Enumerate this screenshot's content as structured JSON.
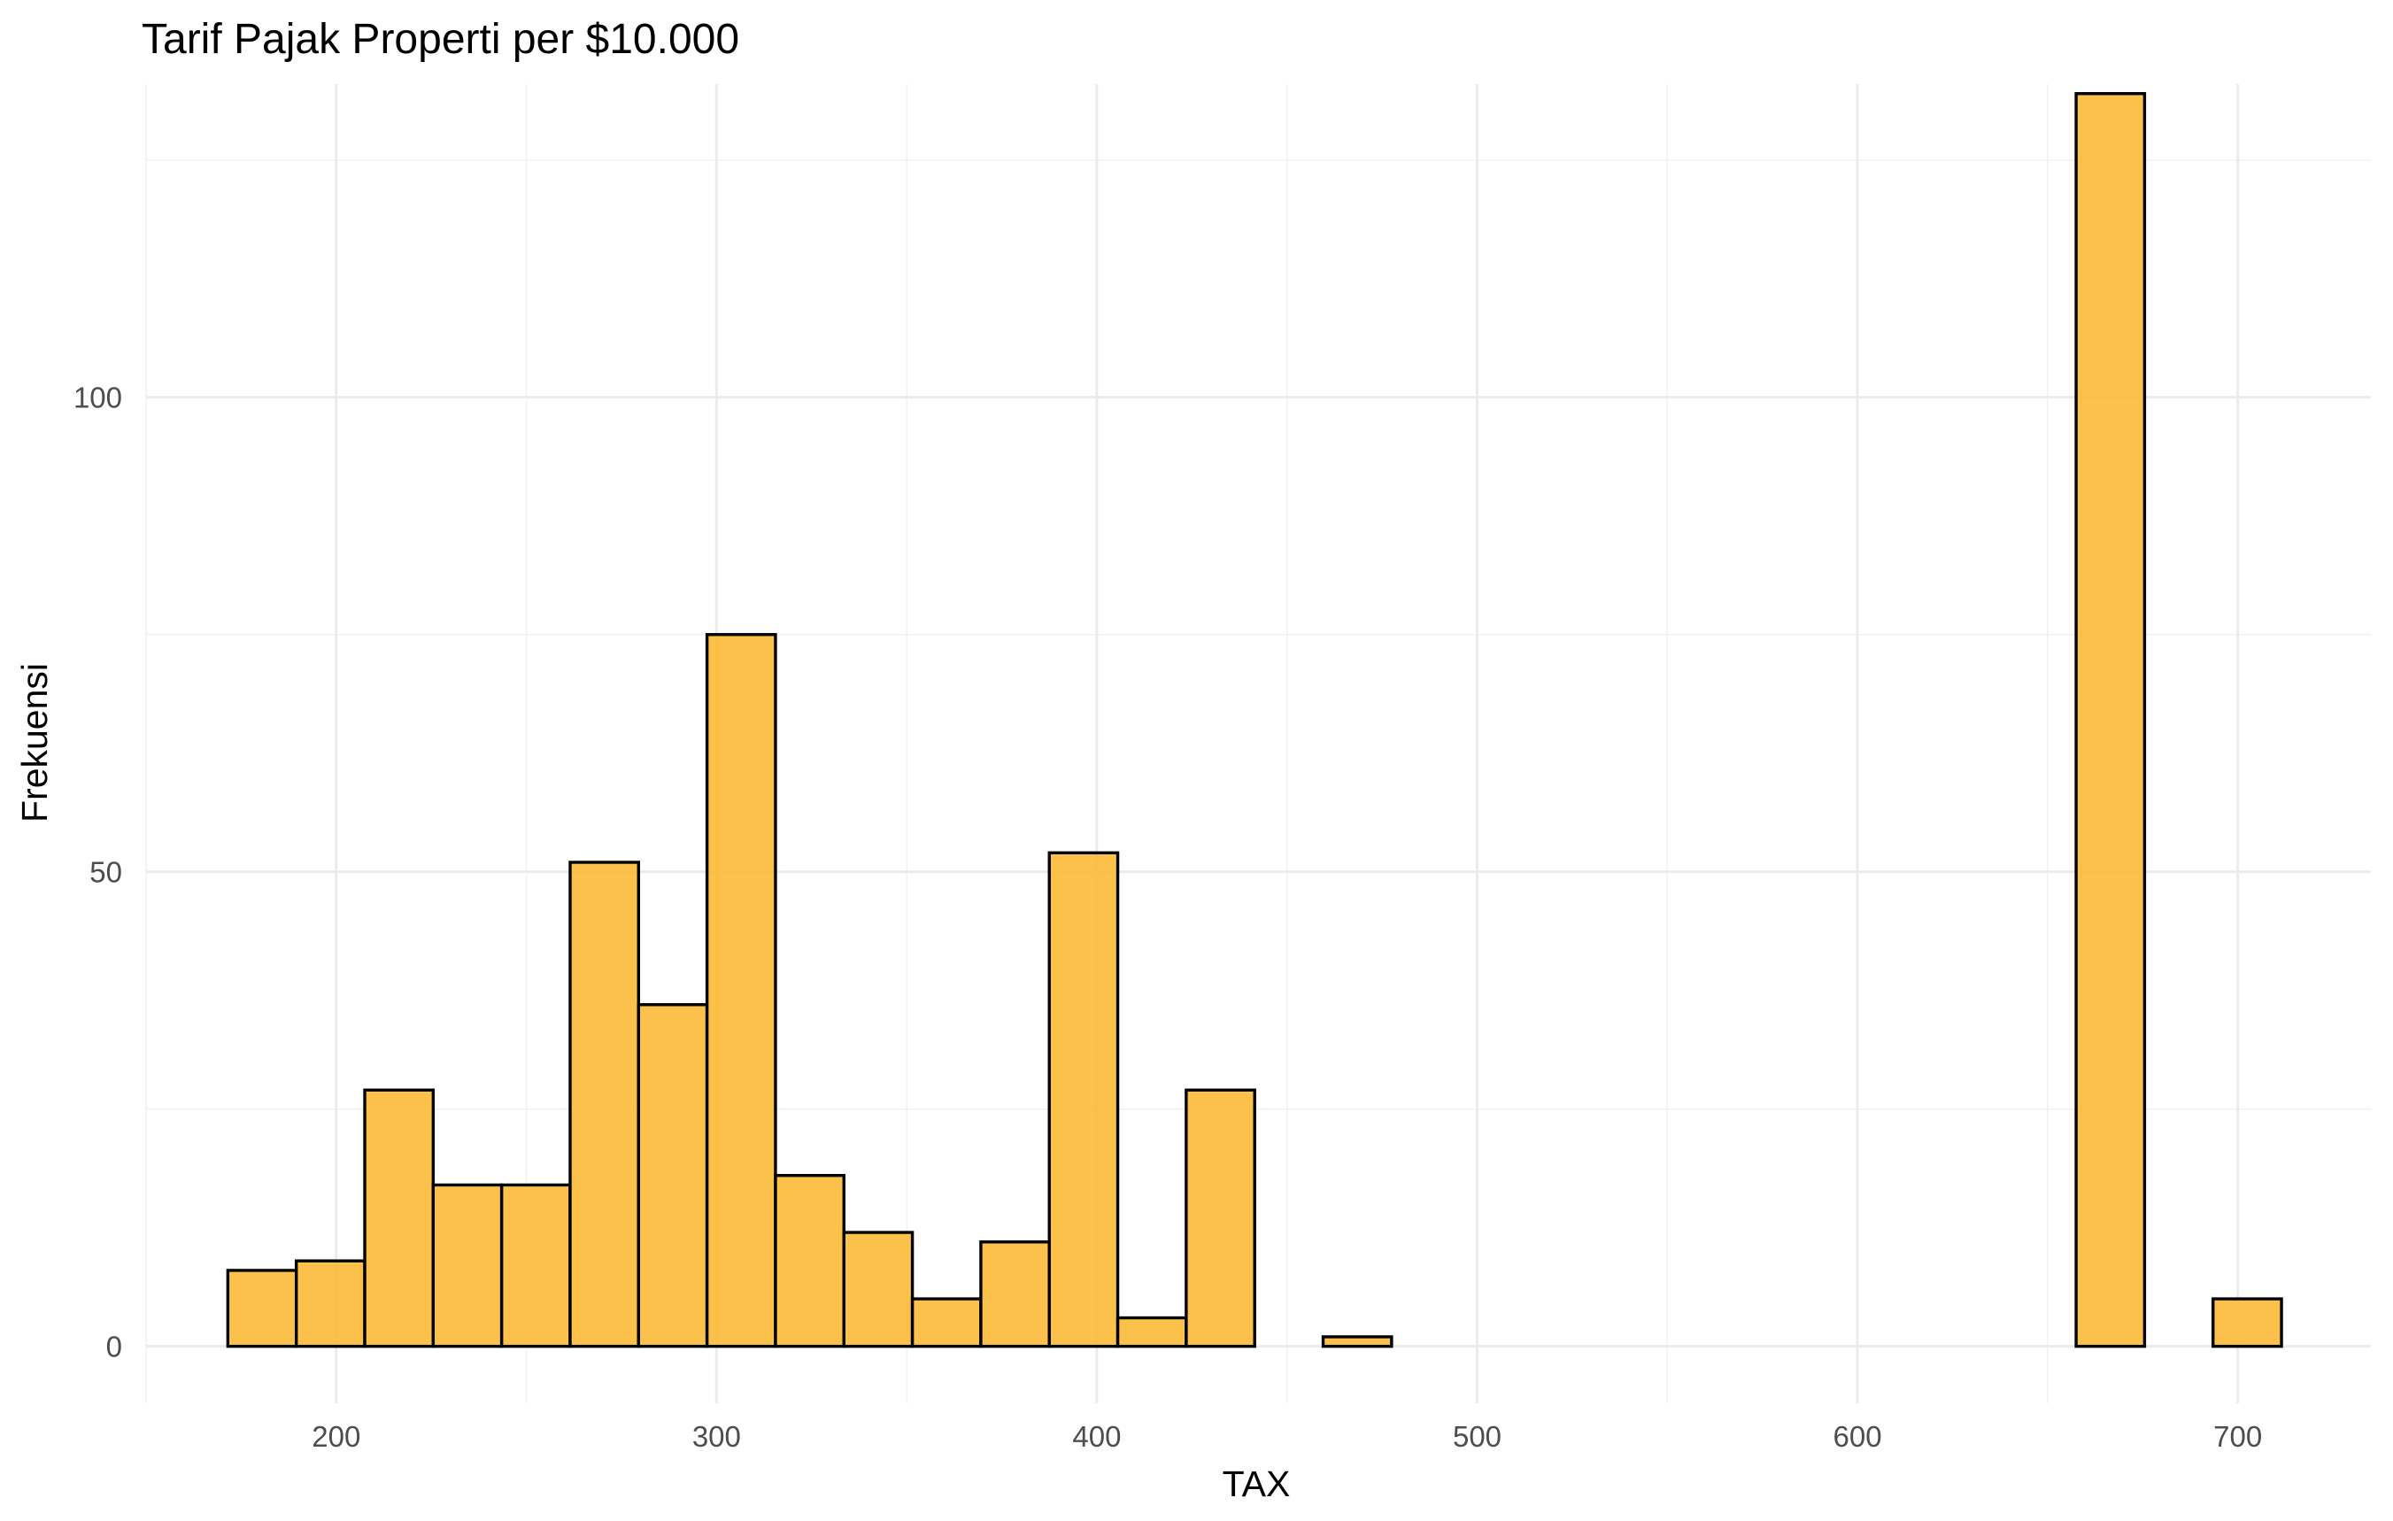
{
  "chart_data": {
    "type": "histogram",
    "title": "Tarif Pajak Properti per $10.000",
    "xlabel": "TAX",
    "ylabel": "Frekuensi",
    "xlim": [
      150,
      735
    ],
    "ylim": [
      -6,
      133
    ],
    "x_ticks": [
      200,
      300,
      400,
      500,
      600,
      700
    ],
    "y_ticks": [
      0,
      50,
      100
    ],
    "x_minor_ticks": [
      150,
      250,
      350,
      450,
      550,
      650
    ],
    "y_minor_ticks": [
      25,
      75,
      125
    ],
    "grid": true,
    "bar_fill": "#fcb830",
    "bar_outline": "#000000",
    "bins": {
      "start": 171.5,
      "width": 18.0,
      "counts": [
        8,
        9,
        27,
        17,
        17,
        51,
        36,
        75,
        18,
        12,
        5,
        11,
        52,
        3,
        27,
        0,
        1,
        0,
        0,
        0,
        0,
        0,
        0,
        0,
        0,
        0,
        0,
        132,
        0,
        5
      ]
    }
  }
}
